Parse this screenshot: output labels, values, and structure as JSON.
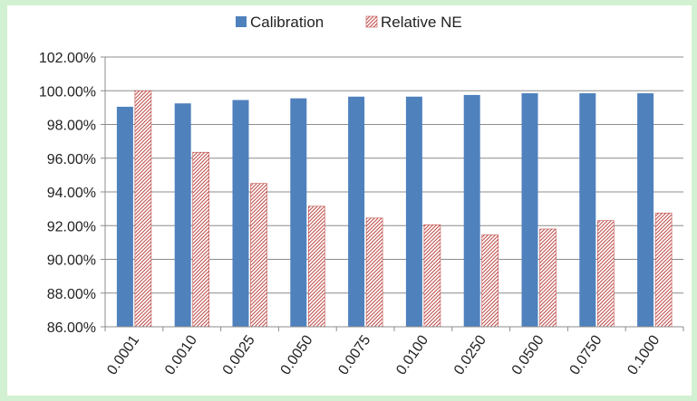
{
  "chart_data": {
    "type": "bar",
    "title": "",
    "xlabel": "",
    "ylabel": "",
    "categories": [
      "0.0001",
      "0.0010",
      "0.0025",
      "0.0050",
      "0.0075",
      "0.0100",
      "0.0250",
      "0.0500",
      "0.0750",
      "0.1000"
    ],
    "series": [
      {
        "name": "Calibration",
        "values": [
          99.05,
          99.25,
          99.45,
          99.55,
          99.65,
          99.65,
          99.75,
          99.85,
          99.85,
          99.85
        ],
        "color": "#4f81bd",
        "pattern": "solid"
      },
      {
        "name": "Relative NE",
        "values": [
          100.0,
          96.35,
          94.5,
          93.15,
          92.45,
          92.05,
          91.45,
          91.8,
          92.3,
          92.75
        ],
        "color": "#c0504d",
        "pattern": "diagonal-hatch"
      }
    ],
    "ylim": [
      86,
      102
    ],
    "yticks": [
      "86.00%",
      "88.00%",
      "90.00%",
      "92.00%",
      "94.00%",
      "96.00%",
      "98.00%",
      "100.00%",
      "102.00%"
    ],
    "grid": true,
    "legend_position": "top"
  }
}
